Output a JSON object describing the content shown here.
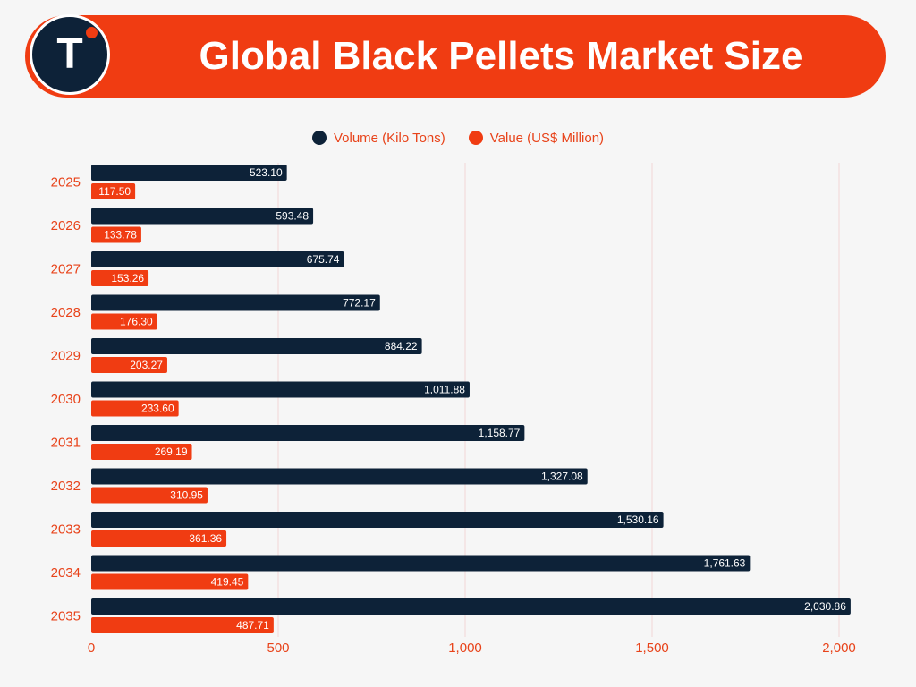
{
  "header": {
    "logo_letter": "T",
    "title": "Global Black Pellets Market Size"
  },
  "colors": {
    "brand_orange": "#f03c12",
    "navy": "#0d2238",
    "text_orange": "#e8431a",
    "grid": "#f1d6d6"
  },
  "chart_data": {
    "type": "bar",
    "orientation": "horizontal",
    "title": "Global Black Pellets Market Size",
    "categories": [
      "2025",
      "2026",
      "2027",
      "2028",
      "2029",
      "2030",
      "2031",
      "2032",
      "2033",
      "2034",
      "2035"
    ],
    "series": [
      {
        "name": "Volume (Kilo Tons)",
        "color": "#0d2238",
        "values": [
          523.1,
          593.48,
          675.74,
          772.17,
          884.22,
          1011.88,
          1158.77,
          1327.08,
          1530.16,
          1761.63,
          2030.86
        ],
        "labels": [
          "523.10",
          "593.48",
          "675.74",
          "772.17",
          "884.22",
          "1,011.88",
          "1,158.77",
          "1,327.08",
          "1,530.16",
          "1,761.63",
          "2,030.86"
        ]
      },
      {
        "name": "Value (US$ Million)",
        "color": "#f03c12",
        "values": [
          117.5,
          133.78,
          153.26,
          176.3,
          203.27,
          233.6,
          269.19,
          310.95,
          361.36,
          419.45,
          487.71
        ],
        "labels": [
          "117.50",
          "133.78",
          "153.26",
          "176.30",
          "203.27",
          "233.60",
          "269.19",
          "310.95",
          "361.36",
          "419.45",
          "487.71"
        ]
      }
    ],
    "xlim": [
      0,
      2000
    ],
    "xticks": [
      0,
      500,
      1000,
      1500,
      2000
    ],
    "xtick_labels": [
      "0",
      "500",
      "1,000",
      "1,500",
      "2,000"
    ],
    "grid": true,
    "legend_position": "top-center"
  }
}
